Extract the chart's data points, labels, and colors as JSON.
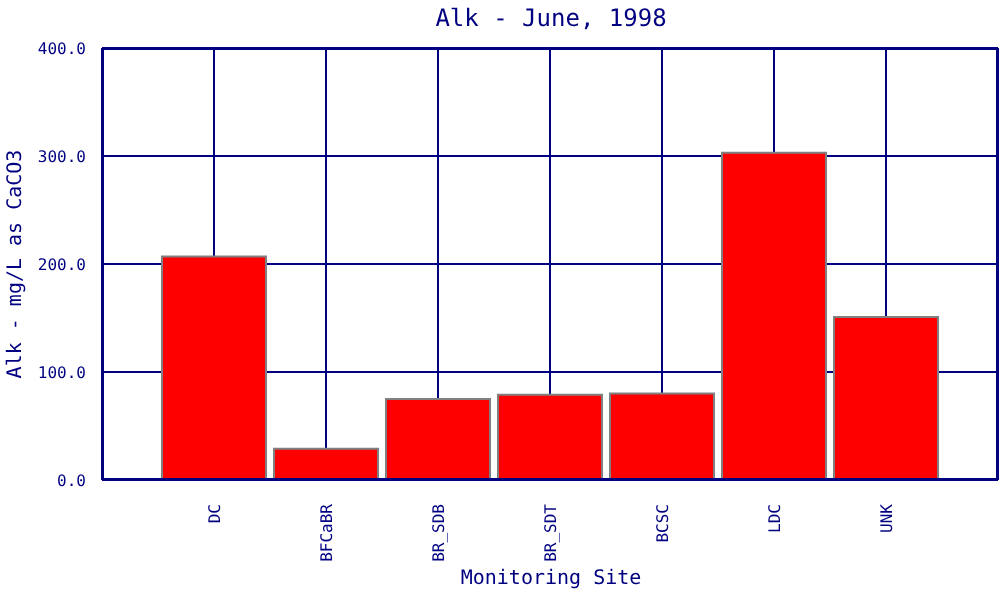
{
  "chart_data": {
    "type": "bar",
    "title": "Alk - June, 1998",
    "xlabel": "Monitoring Site",
    "ylabel": "Alk - mg/L as CaCO3",
    "categories": [
      "DC",
      "BFCaBR",
      "BR_SDB",
      "BR_SDT",
      "BCSC",
      "LDC",
      "UNK"
    ],
    "values": [
      207,
      29,
      75,
      79,
      80,
      303,
      151
    ],
    "color": "#ff0000",
    "ylim": [
      0,
      400
    ],
    "yticks": [
      {
        "value": 0,
        "label": "0.0"
      },
      {
        "value": 100,
        "label": "100.0"
      },
      {
        "value": 200,
        "label": "200.0"
      },
      {
        "value": 300,
        "label": "300.0"
      },
      {
        "value": 400,
        "label": "400.0"
      }
    ],
    "grid": true,
    "legend": false
  }
}
